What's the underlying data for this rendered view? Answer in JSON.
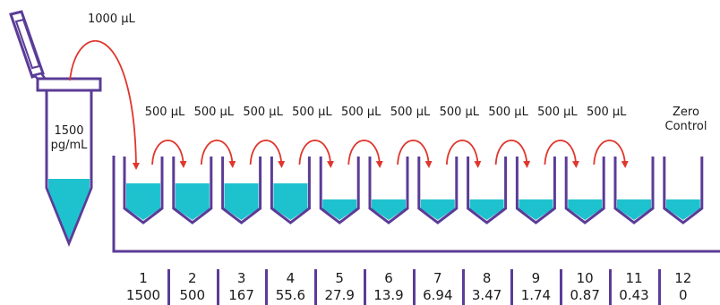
{
  "colors": {
    "outline": "#5b3c97",
    "liquid": "#1ec2cf",
    "arrow": "#e0362c",
    "text": "#1a1a1a"
  },
  "stock": {
    "transfer_label": "1000 µL",
    "concentration_line1": "1500",
    "concentration_line2": "pg/mL"
  },
  "transfer_labels": [
    "500 µL",
    "500 µL",
    "500 µL",
    "500 µL",
    "500 µL",
    "500 µL",
    "500 µL",
    "500 µL",
    "500 µL",
    "500 µL"
  ],
  "zero_control": {
    "line1": "Zero",
    "line2": "Control"
  },
  "wells": [
    {
      "number": "1",
      "concentration": "1500",
      "fill": 1.0
    },
    {
      "number": "2",
      "concentration": "500",
      "fill": 1.0
    },
    {
      "number": "3",
      "concentration": "167",
      "fill": 1.0
    },
    {
      "number": "4",
      "concentration": "55.6",
      "fill": 1.0
    },
    {
      "number": "5",
      "concentration": "27.9",
      "fill": 0.5
    },
    {
      "number": "6",
      "concentration": "13.9",
      "fill": 0.5
    },
    {
      "number": "7",
      "concentration": "6.94",
      "fill": 0.5
    },
    {
      "number": "8",
      "concentration": "3.47",
      "fill": 0.5
    },
    {
      "number": "9",
      "concentration": "1.74",
      "fill": 0.5
    },
    {
      "number": "10",
      "concentration": "0.87",
      "fill": 0.5
    },
    {
      "number": "11",
      "concentration": "0.43",
      "fill": 0.5
    },
    {
      "number": "12",
      "concentration": "0",
      "fill": 0.5
    }
  ]
}
